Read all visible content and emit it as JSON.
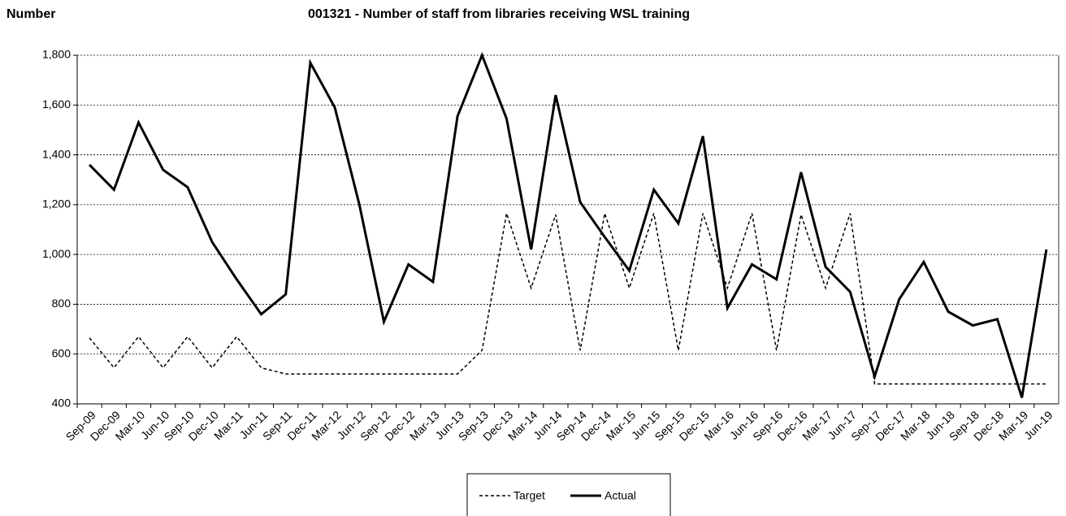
{
  "chart_data": {
    "type": "line",
    "title": "001321 - Number of staff from libraries receiving WSL training",
    "y_label": "Number",
    "categories": [
      "Sep-09",
      "Dec-09",
      "Mar-10",
      "Jun-10",
      "Sep-10",
      "Dec-10",
      "Mar-11",
      "Jun-11",
      "Sep-11",
      "Dec-11",
      "Mar-12",
      "Jun-12",
      "Sep-12",
      "Dec-12",
      "Mar-13",
      "Jun-13",
      "Sep-13",
      "Dec-13",
      "Mar-14",
      "Jun-14",
      "Sep-14",
      "Dec-14",
      "Mar-15",
      "Jun-15",
      "Sep-15",
      "Dec-15",
      "Mar-16",
      "Jun-16",
      "Sep-16",
      "Dec-16",
      "Mar-17",
      "Jun-17",
      "Sep-17",
      "Dec-17",
      "Mar-18",
      "Jun-18",
      "Sep-18",
      "Dec-18",
      "Mar-19",
      "Jun-19"
    ],
    "series": [
      {
        "name": "Target",
        "color": "#000000",
        "dash": true,
        "values": [
          665,
          545,
          670,
          545,
          670,
          545,
          670,
          545,
          520,
          520,
          520,
          520,
          520,
          520,
          520,
          520,
          615,
          1165,
          865,
          1160,
          615,
          1165,
          865,
          1165,
          615,
          1165,
          865,
          1165,
          615,
          1160,
          865,
          1165,
          480,
          480,
          480,
          480,
          480,
          480,
          480,
          480
        ]
      },
      {
        "name": "Actual",
        "color": "#000000",
        "dash": false,
        "values": [
          1360,
          1260,
          1530,
          1340,
          1270,
          1050,
          900,
          760,
          840,
          1770,
          1590,
          1200,
          730,
          960,
          890,
          1555,
          1800,
          1545,
          1020,
          1640,
          1210,
          1070,
          935,
          1260,
          1125,
          1475,
          785,
          960,
          900,
          1330,
          950,
          850,
          510,
          820,
          970,
          770,
          715,
          740,
          425,
          1020
        ]
      }
    ],
    "ylim": [
      400,
      1800
    ],
    "yticks": [
      400,
      600,
      800,
      {
        "value": 1000,
        "label": "1,000"
      },
      {
        "value": 1200,
        "label": "1,200"
      },
      {
        "value": 1400,
        "label": "1,400"
      },
      {
        "value": 1600,
        "label": "1,600"
      },
      {
        "value": 1800,
        "label": "1,800"
      }
    ],
    "grid": true,
    "legend": "bottom"
  }
}
